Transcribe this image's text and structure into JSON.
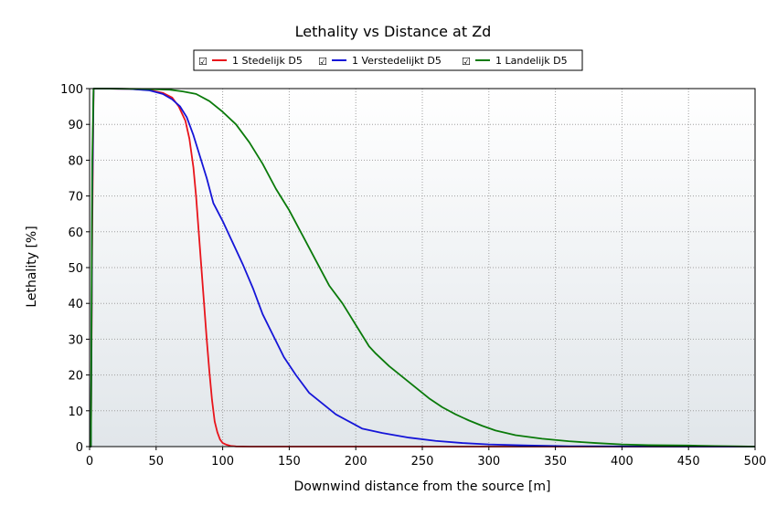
{
  "chart_data": {
    "type": "line",
    "title": "Lethality vs Distance at Zd",
    "xlabel": "Downwind distance from the source [m]",
    "ylabel": "Lethality [%]",
    "xlim": [
      0,
      500
    ],
    "ylim": [
      0,
      100
    ],
    "xticks": [
      0,
      50,
      100,
      150,
      200,
      250,
      300,
      350,
      400,
      450,
      500
    ],
    "yticks": [
      0,
      10,
      20,
      30,
      40,
      50,
      60,
      70,
      80,
      90,
      100
    ],
    "grid": true,
    "legend_position": "top",
    "legend_checkbox_glyph": "☑",
    "series": [
      {
        "name": "1 Stedelijk D5",
        "color": "#e8141b",
        "points": [
          [
            0,
            0
          ],
          [
            1,
            0
          ],
          [
            2,
            60
          ],
          [
            3,
            100
          ],
          [
            10,
            100
          ],
          [
            30,
            99.9
          ],
          [
            45,
            99.6
          ],
          [
            55,
            98.8
          ],
          [
            62,
            97.5
          ],
          [
            67,
            95
          ],
          [
            72,
            91
          ],
          [
            75,
            86
          ],
          [
            78,
            78
          ],
          [
            80,
            70
          ],
          [
            82,
            60
          ],
          [
            84,
            50
          ],
          [
            86,
            40
          ],
          [
            88,
            30
          ],
          [
            90,
            21
          ],
          [
            92,
            13
          ],
          [
            94,
            7
          ],
          [
            96,
            4
          ],
          [
            98,
            2
          ],
          [
            100,
            1
          ],
          [
            103,
            0.5
          ],
          [
            106,
            0.2
          ],
          [
            110,
            0.05
          ],
          [
            120,
            0
          ],
          [
            500,
            0
          ]
        ]
      },
      {
        "name": "1 Verstedelijkt D5",
        "color": "#1515d8",
        "points": [
          [
            0,
            0
          ],
          [
            1,
            0
          ],
          [
            2,
            70
          ],
          [
            3,
            100
          ],
          [
            10,
            100
          ],
          [
            30,
            99.9
          ],
          [
            45,
            99.5
          ],
          [
            55,
            98.5
          ],
          [
            62,
            97
          ],
          [
            68,
            95
          ],
          [
            73,
            92
          ],
          [
            78,
            87
          ],
          [
            83,
            81
          ],
          [
            88,
            75
          ],
          [
            93,
            68
          ],
          [
            100,
            63
          ],
          [
            110,
            55
          ],
          [
            115,
            51
          ],
          [
            123,
            44
          ],
          [
            130,
            37
          ],
          [
            138,
            31
          ],
          [
            146,
            25
          ],
          [
            155,
            20
          ],
          [
            165,
            15
          ],
          [
            175,
            12
          ],
          [
            185,
            9
          ],
          [
            195,
            7
          ],
          [
            205,
            5
          ],
          [
            220,
            3.8
          ],
          [
            240,
            2.5
          ],
          [
            260,
            1.6
          ],
          [
            280,
            1
          ],
          [
            300,
            0.6
          ],
          [
            330,
            0.3
          ],
          [
            360,
            0.1
          ],
          [
            400,
            0.05
          ],
          [
            450,
            0
          ],
          [
            500,
            0
          ]
        ]
      },
      {
        "name": "1 Landelijk D5",
        "color": "#0a7a0a",
        "points": [
          [
            0,
            0
          ],
          [
            1,
            0
          ],
          [
            2,
            80
          ],
          [
            3,
            100
          ],
          [
            10,
            100
          ],
          [
            40,
            99.9
          ],
          [
            60,
            99.7
          ],
          [
            70,
            99.2
          ],
          [
            80,
            98.5
          ],
          [
            90,
            96.5
          ],
          [
            100,
            93.5
          ],
          [
            110,
            90
          ],
          [
            120,
            85
          ],
          [
            130,
            79
          ],
          [
            140,
            72
          ],
          [
            150,
            66
          ],
          [
            160,
            59
          ],
          [
            170,
            52
          ],
          [
            180,
            45
          ],
          [
            190,
            40
          ],
          [
            200,
            34
          ],
          [
            210,
            28
          ],
          [
            215,
            26
          ],
          [
            225,
            22.5
          ],
          [
            235,
            19.5
          ],
          [
            245,
            16.5
          ],
          [
            255,
            13.5
          ],
          [
            265,
            11
          ],
          [
            275,
            9
          ],
          [
            285,
            7.3
          ],
          [
            295,
            5.8
          ],
          [
            305,
            4.5
          ],
          [
            320,
            3.2
          ],
          [
            340,
            2.2
          ],
          [
            360,
            1.5
          ],
          [
            380,
            1
          ],
          [
            400,
            0.6
          ],
          [
            420,
            0.4
          ],
          [
            450,
            0.3
          ],
          [
            470,
            0.15
          ],
          [
            490,
            0.05
          ],
          [
            500,
            0
          ]
        ]
      }
    ]
  }
}
